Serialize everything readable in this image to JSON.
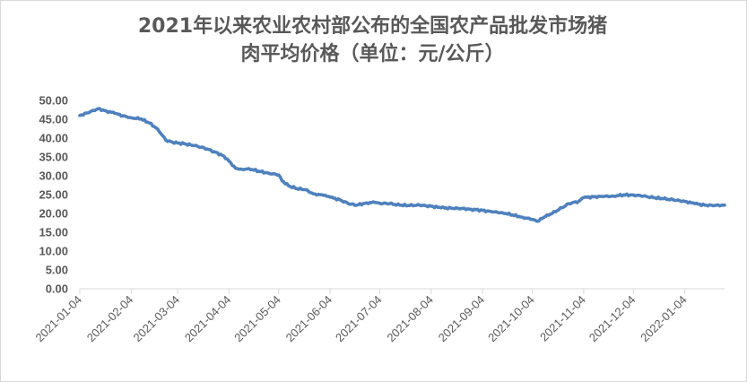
{
  "chart_data": {
    "type": "line",
    "title_lines": [
      "2021年以来农业农村部公布的全国农产品批发市场猪",
      "肉平均价格（单位：元/公斤）"
    ],
    "xlabel": "",
    "ylabel": "",
    "ylim": [
      0,
      50
    ],
    "y_ticks": [
      "0.00",
      "5.00",
      "10.00",
      "15.00",
      "20.00",
      "25.00",
      "30.00",
      "35.00",
      "40.00",
      "45.00",
      "50.00"
    ],
    "x_ticks": [
      "2021-01-04",
      "2021-02-04",
      "2021-03-04",
      "2021-04-04",
      "2021-05-04",
      "2021-06-04",
      "2021-07-04",
      "2021-08-04",
      "2021-09-04",
      "2021-10-04",
      "2021-11-04",
      "2021-12-04",
      "2022-01-04"
    ],
    "grid": false,
    "legend": "none",
    "line_color": "#4f81bd",
    "x": [
      "2021-01-04",
      "2021-01-10",
      "2021-01-15",
      "2021-01-20",
      "2021-01-25",
      "2021-01-30",
      "2021-02-04",
      "2021-02-10",
      "2021-02-15",
      "2021-02-20",
      "2021-02-25",
      "2021-03-01",
      "2021-03-04",
      "2021-03-08",
      "2021-03-14",
      "2021-03-20",
      "2021-03-26",
      "2021-04-01",
      "2021-04-04",
      "2021-04-08",
      "2021-04-12",
      "2021-04-16",
      "2021-04-22",
      "2021-04-28",
      "2021-05-04",
      "2021-05-06",
      "2021-05-10",
      "2021-05-15",
      "2021-05-20",
      "2021-05-25",
      "2021-05-31",
      "2021-06-04",
      "2021-06-10",
      "2021-06-15",
      "2021-06-20",
      "2021-06-26",
      "2021-07-01",
      "2021-07-04",
      "2021-07-10",
      "2021-07-16",
      "2021-07-22",
      "2021-07-28",
      "2021-08-04",
      "2021-08-10",
      "2021-08-16",
      "2021-08-22",
      "2021-08-28",
      "2021-09-04",
      "2021-09-10",
      "2021-09-16",
      "2021-09-22",
      "2021-09-28",
      "2021-10-04",
      "2021-10-07",
      "2021-10-12",
      "2021-10-16",
      "2021-10-20",
      "2021-10-26",
      "2021-11-01",
      "2021-11-04",
      "2021-11-10",
      "2021-11-16",
      "2021-11-22",
      "2021-11-28",
      "2021-12-04",
      "2021-12-10",
      "2021-12-16",
      "2021-12-22",
      "2021-12-28",
      "2022-01-04",
      "2022-01-10",
      "2022-01-16",
      "2022-01-22",
      "2022-01-28"
    ],
    "values": [
      46.0,
      46.9,
      47.8,
      47.2,
      46.6,
      45.9,
      45.4,
      45.1,
      44.0,
      42.4,
      39.4,
      38.9,
      38.7,
      38.5,
      38.0,
      37.4,
      36.4,
      35.2,
      33.9,
      32.0,
      31.7,
      31.9,
      31.2,
      30.7,
      30.2,
      28.7,
      27.3,
      26.6,
      26.3,
      25.2,
      24.8,
      24.3,
      23.6,
      22.6,
      22.2,
      22.8,
      22.9,
      22.7,
      22.6,
      22.2,
      22.1,
      22.2,
      21.9,
      21.5,
      21.4,
      21.3,
      21.1,
      20.8,
      20.4,
      20.2,
      19.6,
      19.0,
      18.4,
      17.9,
      19.2,
      20.0,
      21.0,
      22.6,
      23.2,
      24.2,
      24.4,
      24.5,
      24.6,
      24.9,
      24.9,
      24.6,
      24.2,
      23.9,
      23.6,
      23.2,
      22.6,
      22.2,
      22.1,
      22.2
    ]
  }
}
